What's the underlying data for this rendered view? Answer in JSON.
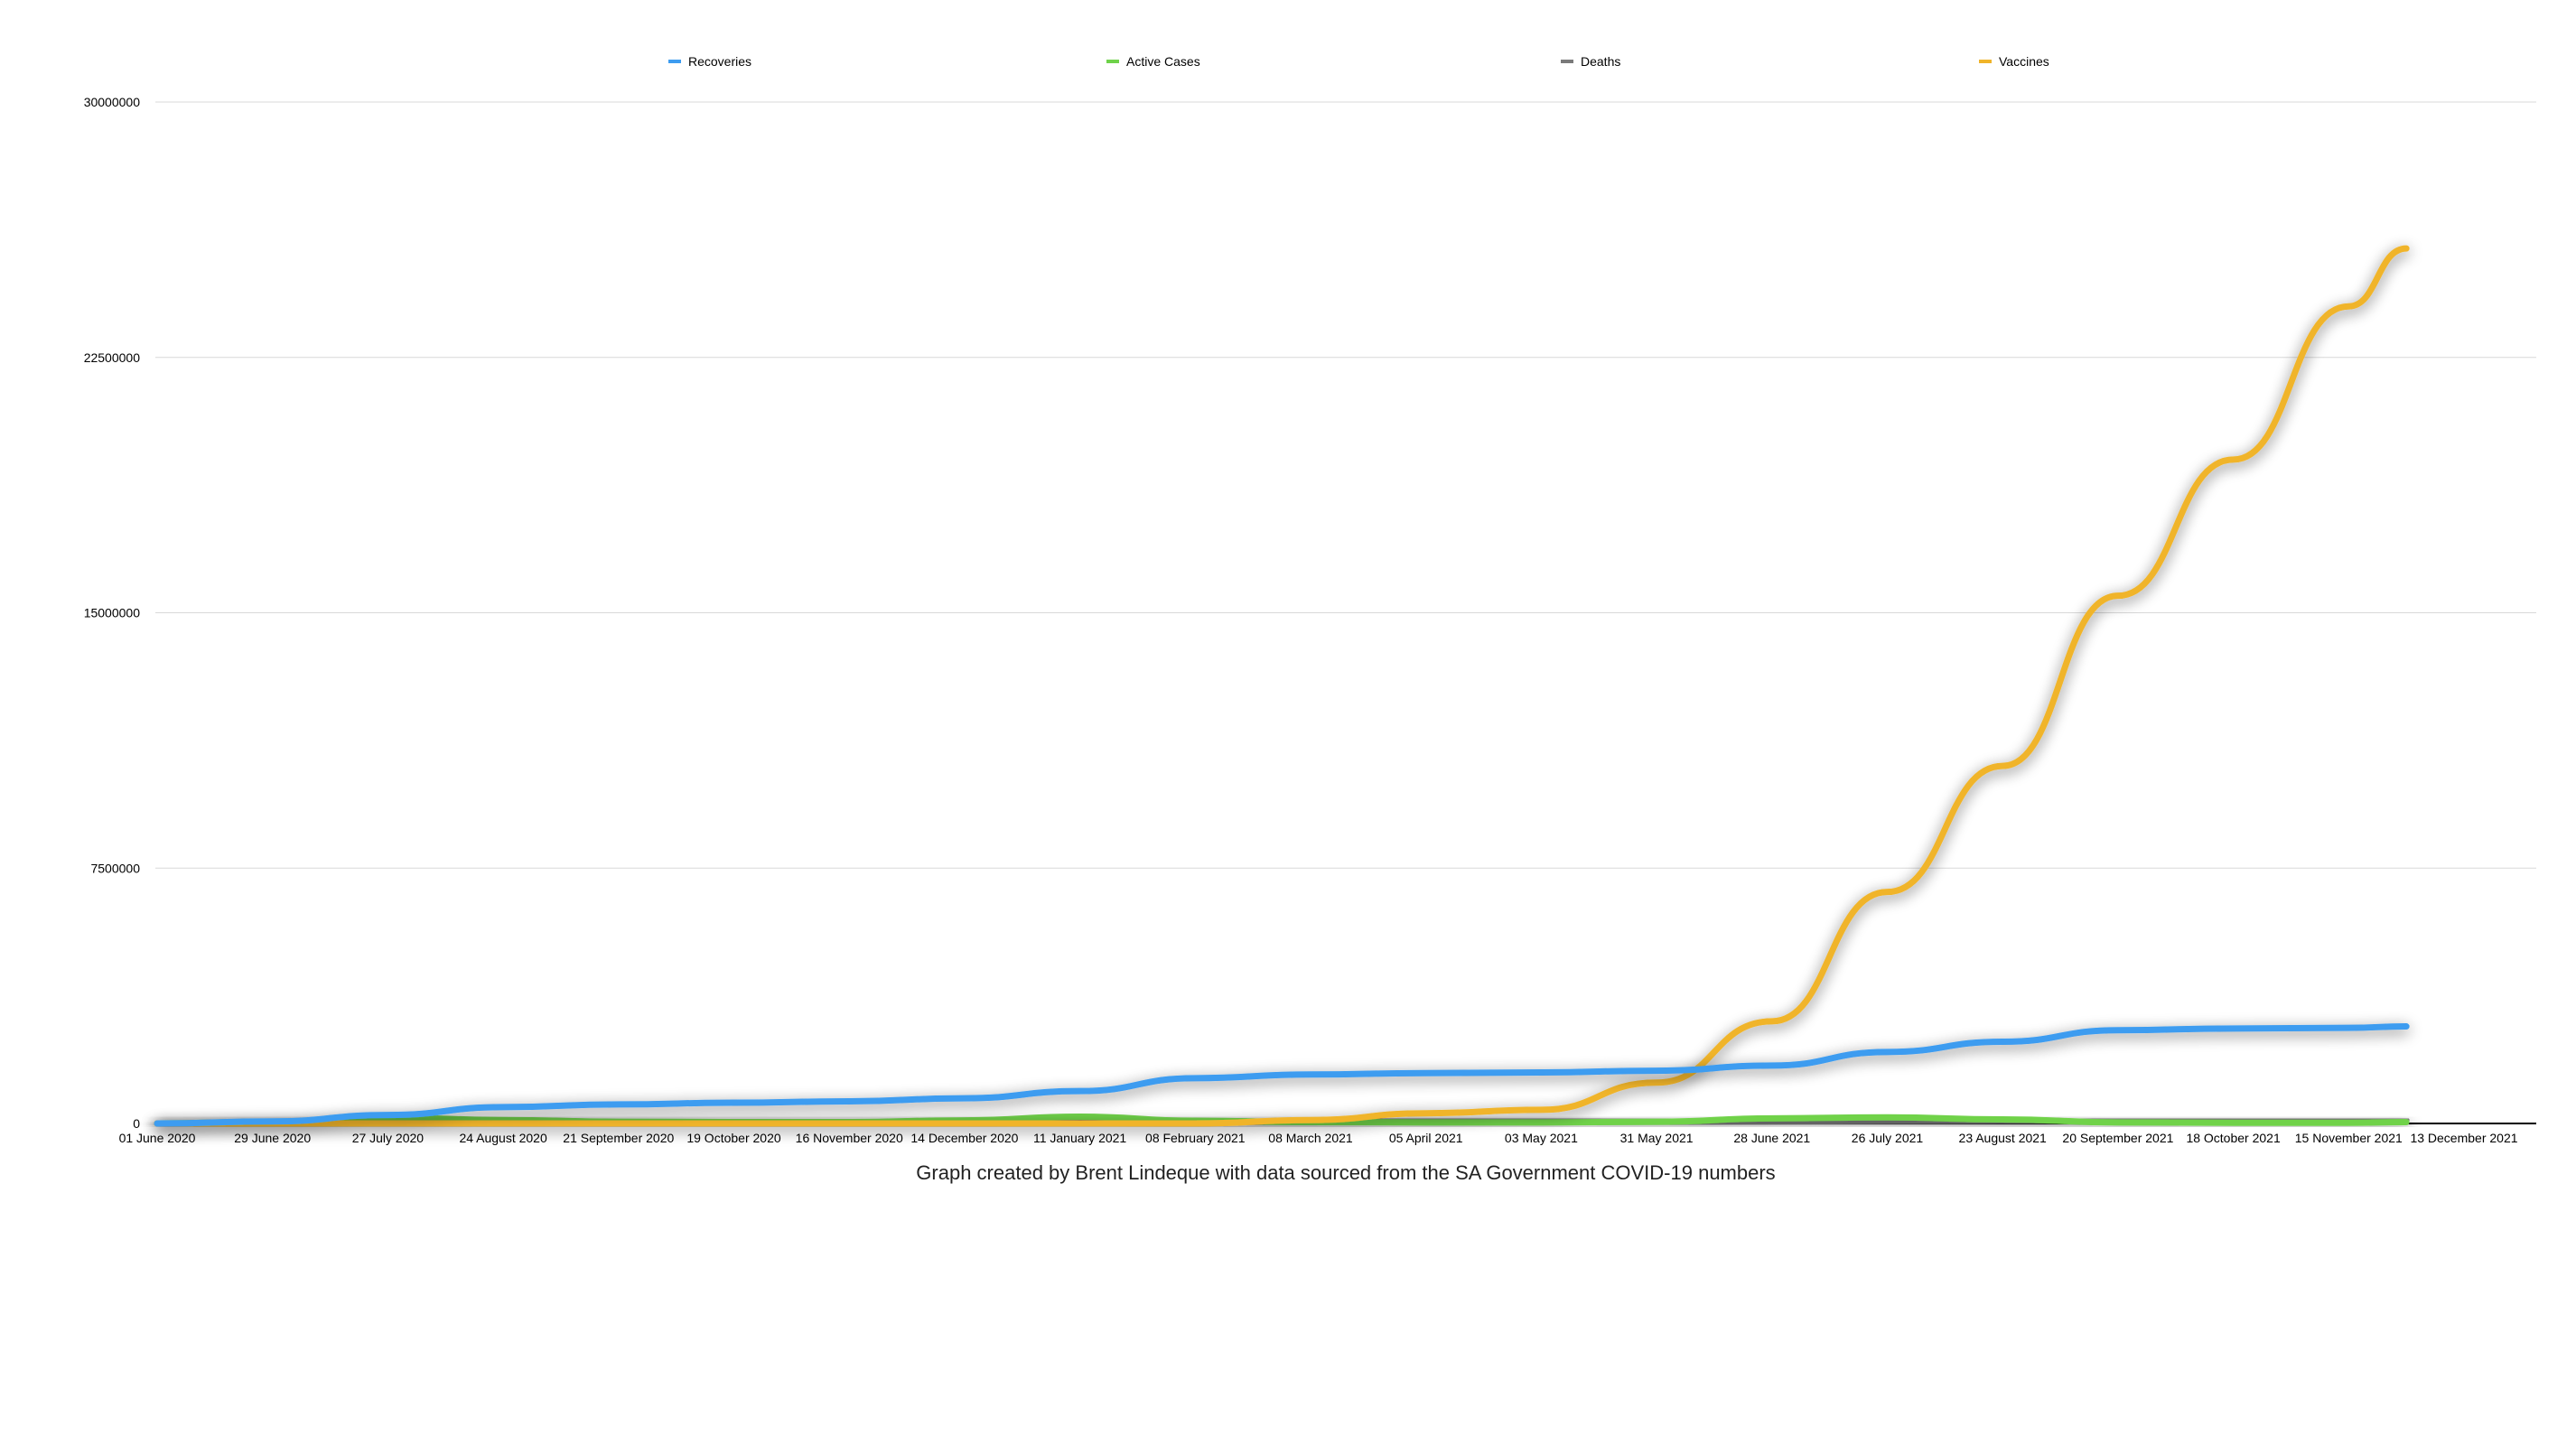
{
  "chart_data": {
    "type": "line",
    "title": "",
    "xlabel": "",
    "ylabel": "",
    "caption": "Graph created by Brent Lindeque with data sourced from the SA Government COVID-19 numbers",
    "x_tick_labels": [
      "01 June 2020",
      "29 June 2020",
      "27 July 2020",
      "24 August 2020",
      "21 September 2020",
      "19 October 2020",
      "16 November 2020",
      "14 December 2020",
      "11 January 2021",
      "08 February 2021",
      "08 March 2021",
      "05 April 2021",
      "03 May 2021",
      "31 May 2021",
      "28 June 2021",
      "26 July 2021",
      "23 August 2021",
      "20 September 2021",
      "18 October 2021",
      "15 November 2021",
      "13 December 2021"
    ],
    "x": [
      "2020-06-01",
      "2020-06-29",
      "2020-07-27",
      "2020-08-24",
      "2020-09-21",
      "2020-10-19",
      "2020-11-16",
      "2020-12-14",
      "2021-01-11",
      "2021-02-08",
      "2021-03-08",
      "2021-04-05",
      "2021-05-03",
      "2021-05-31",
      "2021-06-28",
      "2021-07-26",
      "2021-08-23",
      "2021-09-20",
      "2021-10-18",
      "2021-11-15",
      "2021-11-29"
    ],
    "y_ticks": [
      "0",
      "7500000",
      "15000000",
      "22500000",
      "30000000"
    ],
    "ylim": [
      0,
      30000000
    ],
    "grid": true,
    "legend_placement": "top",
    "series": [
      {
        "name": "Recoveries",
        "color": "#3d9cf0",
        "values": [
          0,
          60000,
          250000,
          480000,
          560000,
          610000,
          650000,
          740000,
          950000,
          1330000,
          1440000,
          1480000,
          1500000,
          1550000,
          1700000,
          2100000,
          2400000,
          2740000,
          2790000,
          2810000,
          2850000
        ]
      },
      {
        "name": "Active Cases",
        "color": "#6fd24a",
        "values": [
          0,
          50000,
          170000,
          100000,
          50000,
          40000,
          40000,
          90000,
          200000,
          80000,
          40000,
          30000,
          30000,
          50000,
          150000,
          180000,
          120000,
          30000,
          20000,
          20000,
          40000
        ]
      },
      {
        "name": "Deaths",
        "color": "#7a7a7a",
        "values": [
          0,
          2000,
          7000,
          14000,
          16000,
          18000,
          20000,
          24000,
          38000,
          46000,
          51000,
          53000,
          55000,
          58000,
          62000,
          72000,
          80000,
          85000,
          88000,
          89000,
          89500
        ]
      },
      {
        "name": "Vaccines",
        "color": "#f0b429",
        "values": [
          0,
          0,
          0,
          0,
          0,
          0,
          0,
          0,
          0,
          0,
          100000,
          300000,
          400000,
          1200000,
          3000000,
          6800000,
          10500000,
          15500000,
          19500000,
          24000000,
          25700000
        ]
      }
    ]
  }
}
